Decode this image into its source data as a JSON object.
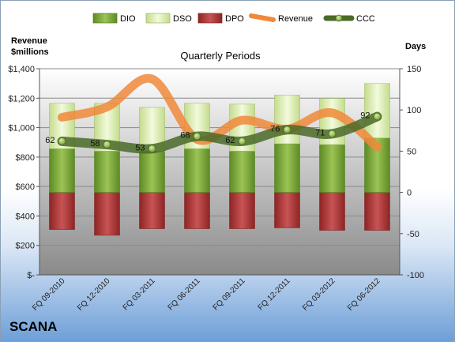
{
  "company": "SCANA",
  "chart_data": {
    "type": "bar",
    "title": "Quarterly Periods",
    "left_axis_title": [
      "Revenue",
      "$millions"
    ],
    "right_axis_title": "Days",
    "left_axis": {
      "min": 0,
      "max": 1400,
      "ticks": [
        0,
        200,
        400,
        600,
        800,
        1000,
        1200,
        1400
      ],
      "tick_labels": [
        "$-",
        "$200",
        "$400",
        "$600",
        "$800",
        "$1,000",
        "$1,200",
        "$1,400"
      ]
    },
    "right_axis": {
      "min": -100,
      "max": 150,
      "ticks": [
        -100,
        -50,
        0,
        50,
        100,
        150
      ],
      "tick_labels": [
        "-100",
        "-50",
        "0",
        "50",
        "100",
        "150"
      ]
    },
    "categories": [
      "FQ 09-2010",
      "FQ 12-2010",
      "FQ 03-2011",
      "FQ 06-2011",
      "FQ 09-2011",
      "FQ 12-2011",
      "FQ 03-2012",
      "FQ 06-2012"
    ],
    "legend_position": "top",
    "series": [
      {
        "name": "DIO",
        "kind": "stacked-bar",
        "axis": "right",
        "color": "#7aa637",
        "values": [
          53,
          50,
          50,
          53,
          50,
          59,
          58,
          66
        ]
      },
      {
        "name": "DSO",
        "kind": "stacked-bar",
        "axis": "right",
        "color": "#d8ecac",
        "values": [
          55,
          58,
          53,
          55,
          57,
          59,
          56,
          66
        ]
      },
      {
        "name": "DPO",
        "kind": "stacked-bar-negative",
        "axis": "right",
        "color": "#b33a3a",
        "values": [
          -45,
          -52,
          -44,
          -44,
          -44,
          -43,
          -46,
          -46
        ]
      },
      {
        "name": "Revenue",
        "kind": "line",
        "axis": "left",
        "color": "#f0883a",
        "values": [
          1070,
          1140,
          1330,
          920,
          1050,
          990,
          1100,
          870
        ]
      },
      {
        "name": "CCC",
        "kind": "line",
        "axis": "right",
        "color": "#4a6a28",
        "values": [
          62,
          58,
          53,
          68,
          62,
          76,
          71,
          92
        ],
        "labels": [
          "62",
          "58",
          "53",
          "68",
          "62",
          "76",
          "71",
          "92"
        ]
      }
    ]
  }
}
